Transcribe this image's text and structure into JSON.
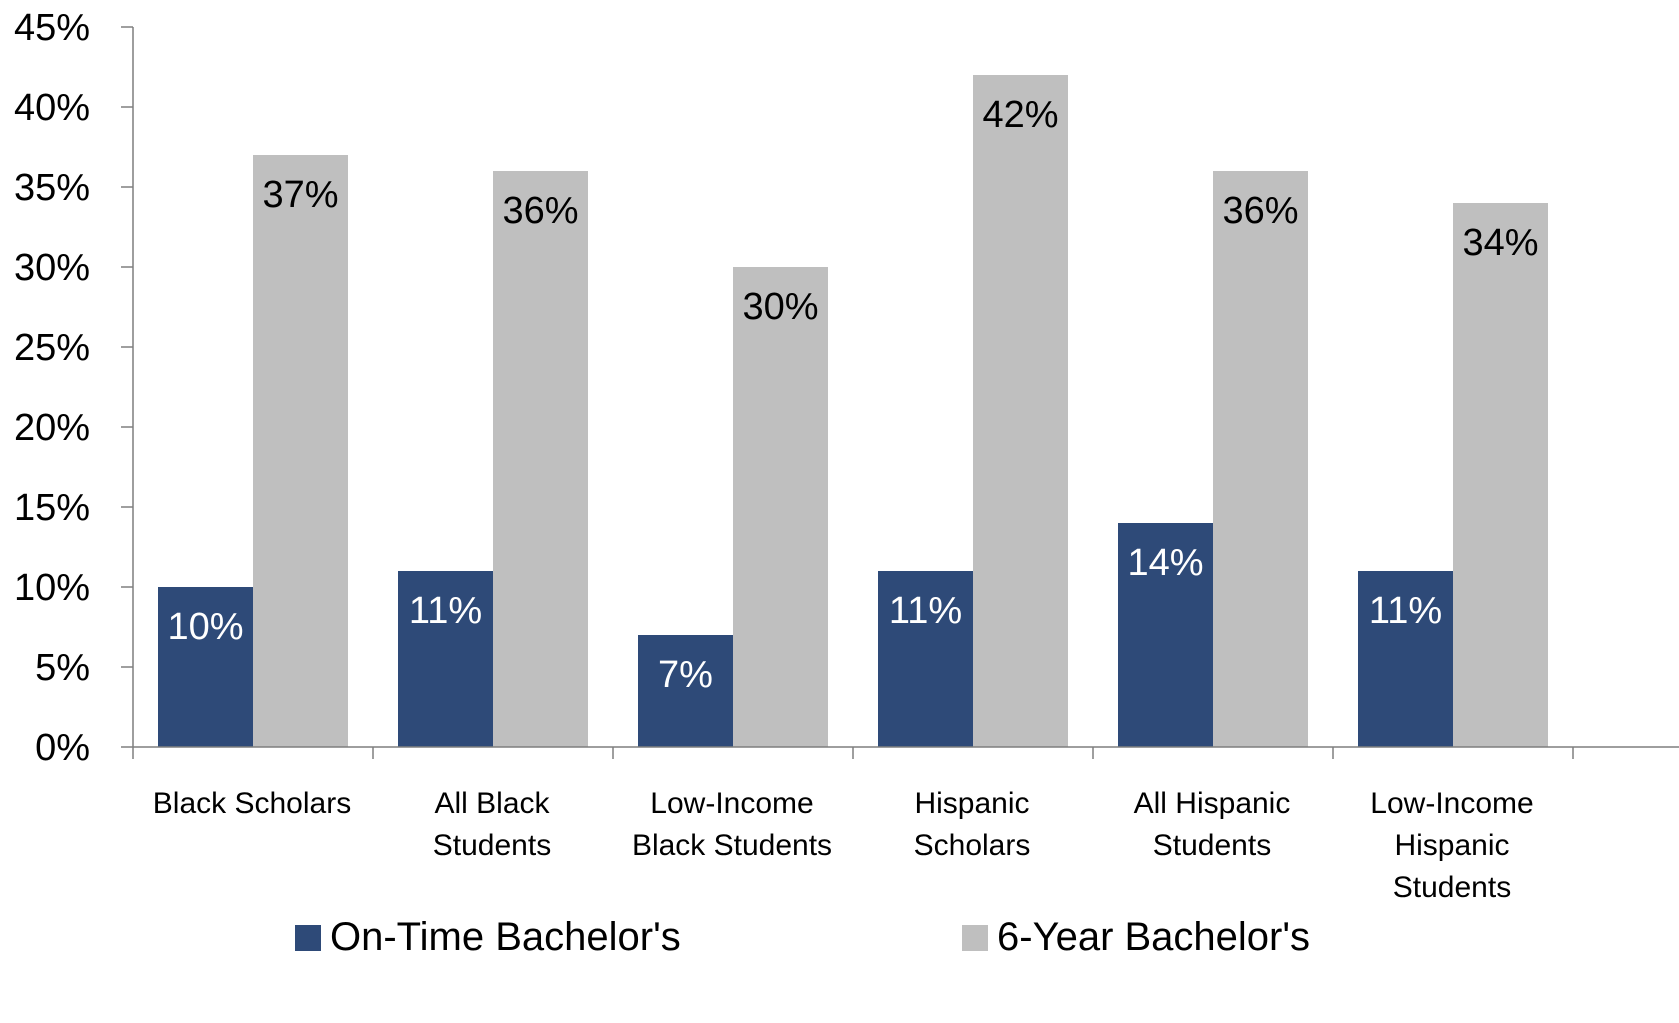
{
  "chart_data": {
    "type": "bar",
    "title": "",
    "xlabel": "",
    "ylabel": "",
    "ylim": [
      0,
      45
    ],
    "y_tick_step": 5,
    "y_tick_format": "percent",
    "grid": false,
    "legend_position": "bottom",
    "categories": [
      [
        "Black Scholars"
      ],
      [
        "All Black",
        "Students"
      ],
      [
        "Low-Income",
        "Black Students"
      ],
      [
        "Hispanic",
        "Scholars"
      ],
      [
        "All Hispanic",
        "Students"
      ],
      [
        "Low-Income",
        "Hispanic",
        "Students"
      ]
    ],
    "series": [
      {
        "name": "On-Time Bachelor's",
        "color": "#2e4a78",
        "label_color": "#ffffff",
        "values": [
          10,
          11,
          7,
          11,
          14,
          11
        ]
      },
      {
        "name": "6-Year Bachelor's",
        "color": "#bfbfbf",
        "label_color": "#000000",
        "values": [
          37,
          36,
          30,
          42,
          36,
          34
        ]
      }
    ]
  }
}
